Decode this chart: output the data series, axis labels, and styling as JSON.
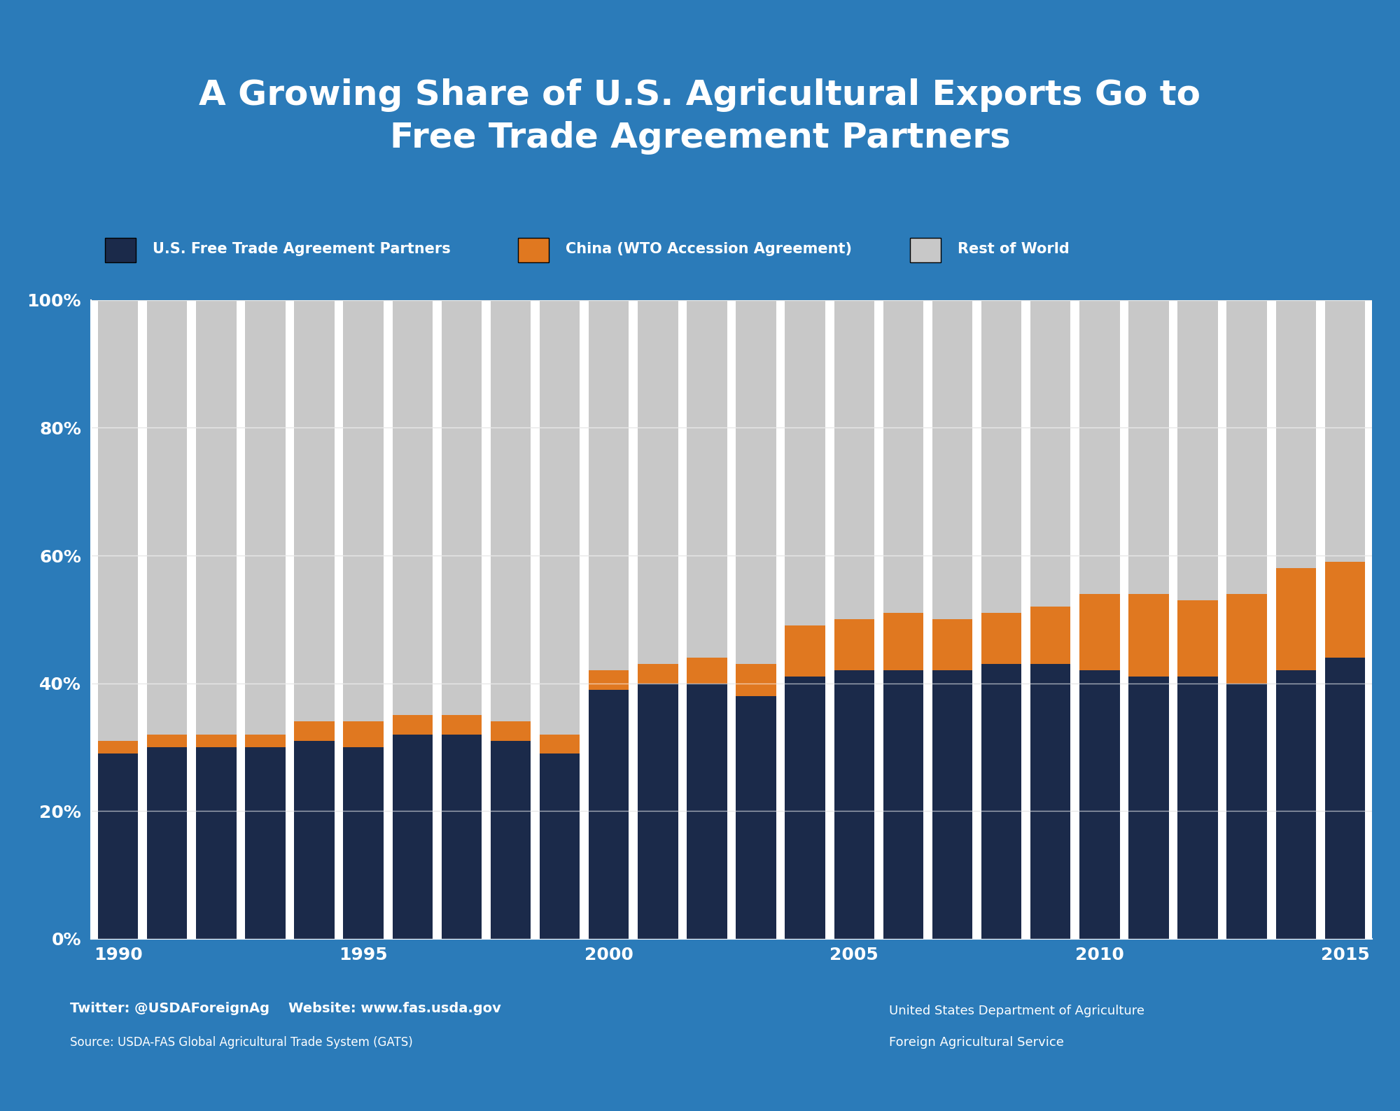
{
  "title": "A Growing Share of U.S. Agricultural Exports Go to\nFree Trade Agreement Partners",
  "background_color": "#2B7BB9",
  "plot_bg_color": "#FFFFFF",
  "bar_color_fta": "#1B2A4A",
  "bar_color_china": "#E07820",
  "bar_color_row": "#C8C8C8",
  "years": [
    1990,
    1991,
    1992,
    1993,
    1994,
    1995,
    1996,
    1997,
    1998,
    1999,
    2000,
    2001,
    2002,
    2003,
    2004,
    2005,
    2006,
    2007,
    2008,
    2009,
    2010,
    2011,
    2012,
    2013,
    2014,
    2015
  ],
  "fta_pct": [
    29,
    30,
    30,
    30,
    31,
    30,
    32,
    32,
    31,
    29,
    39,
    40,
    40,
    38,
    41,
    42,
    42,
    42,
    43,
    43,
    42,
    41,
    41,
    40,
    42,
    44
  ],
  "china_pct": [
    2,
    2,
    2,
    2,
    3,
    4,
    3,
    3,
    3,
    3,
    3,
    3,
    4,
    5,
    8,
    8,
    9,
    8,
    8,
    9,
    12,
    13,
    12,
    14,
    16,
    15
  ],
  "legend_fta": "U.S. Free Trade Agreement Partners",
  "legend_china": "China (WTO Accession Agreement)",
  "legend_row": "Rest of World",
  "footer_left_line1": "Twitter: @USDAForeignAg    Website: www.fas.usda.gov",
  "footer_left_line2": "Source: USDA-FAS Global Agricultural Trade System (GATS)",
  "footer_right_line1": "United States Department of Agriculture",
  "footer_right_line2": "Foreign Agricultural Service",
  "ytick_labels": [
    "0%",
    "20%",
    "40%",
    "60%",
    "80%",
    "100%"
  ],
  "ytick_values": [
    0,
    20,
    40,
    60,
    80,
    100
  ],
  "xtick_years": [
    1990,
    1995,
    2000,
    2005,
    2010,
    2015
  ]
}
